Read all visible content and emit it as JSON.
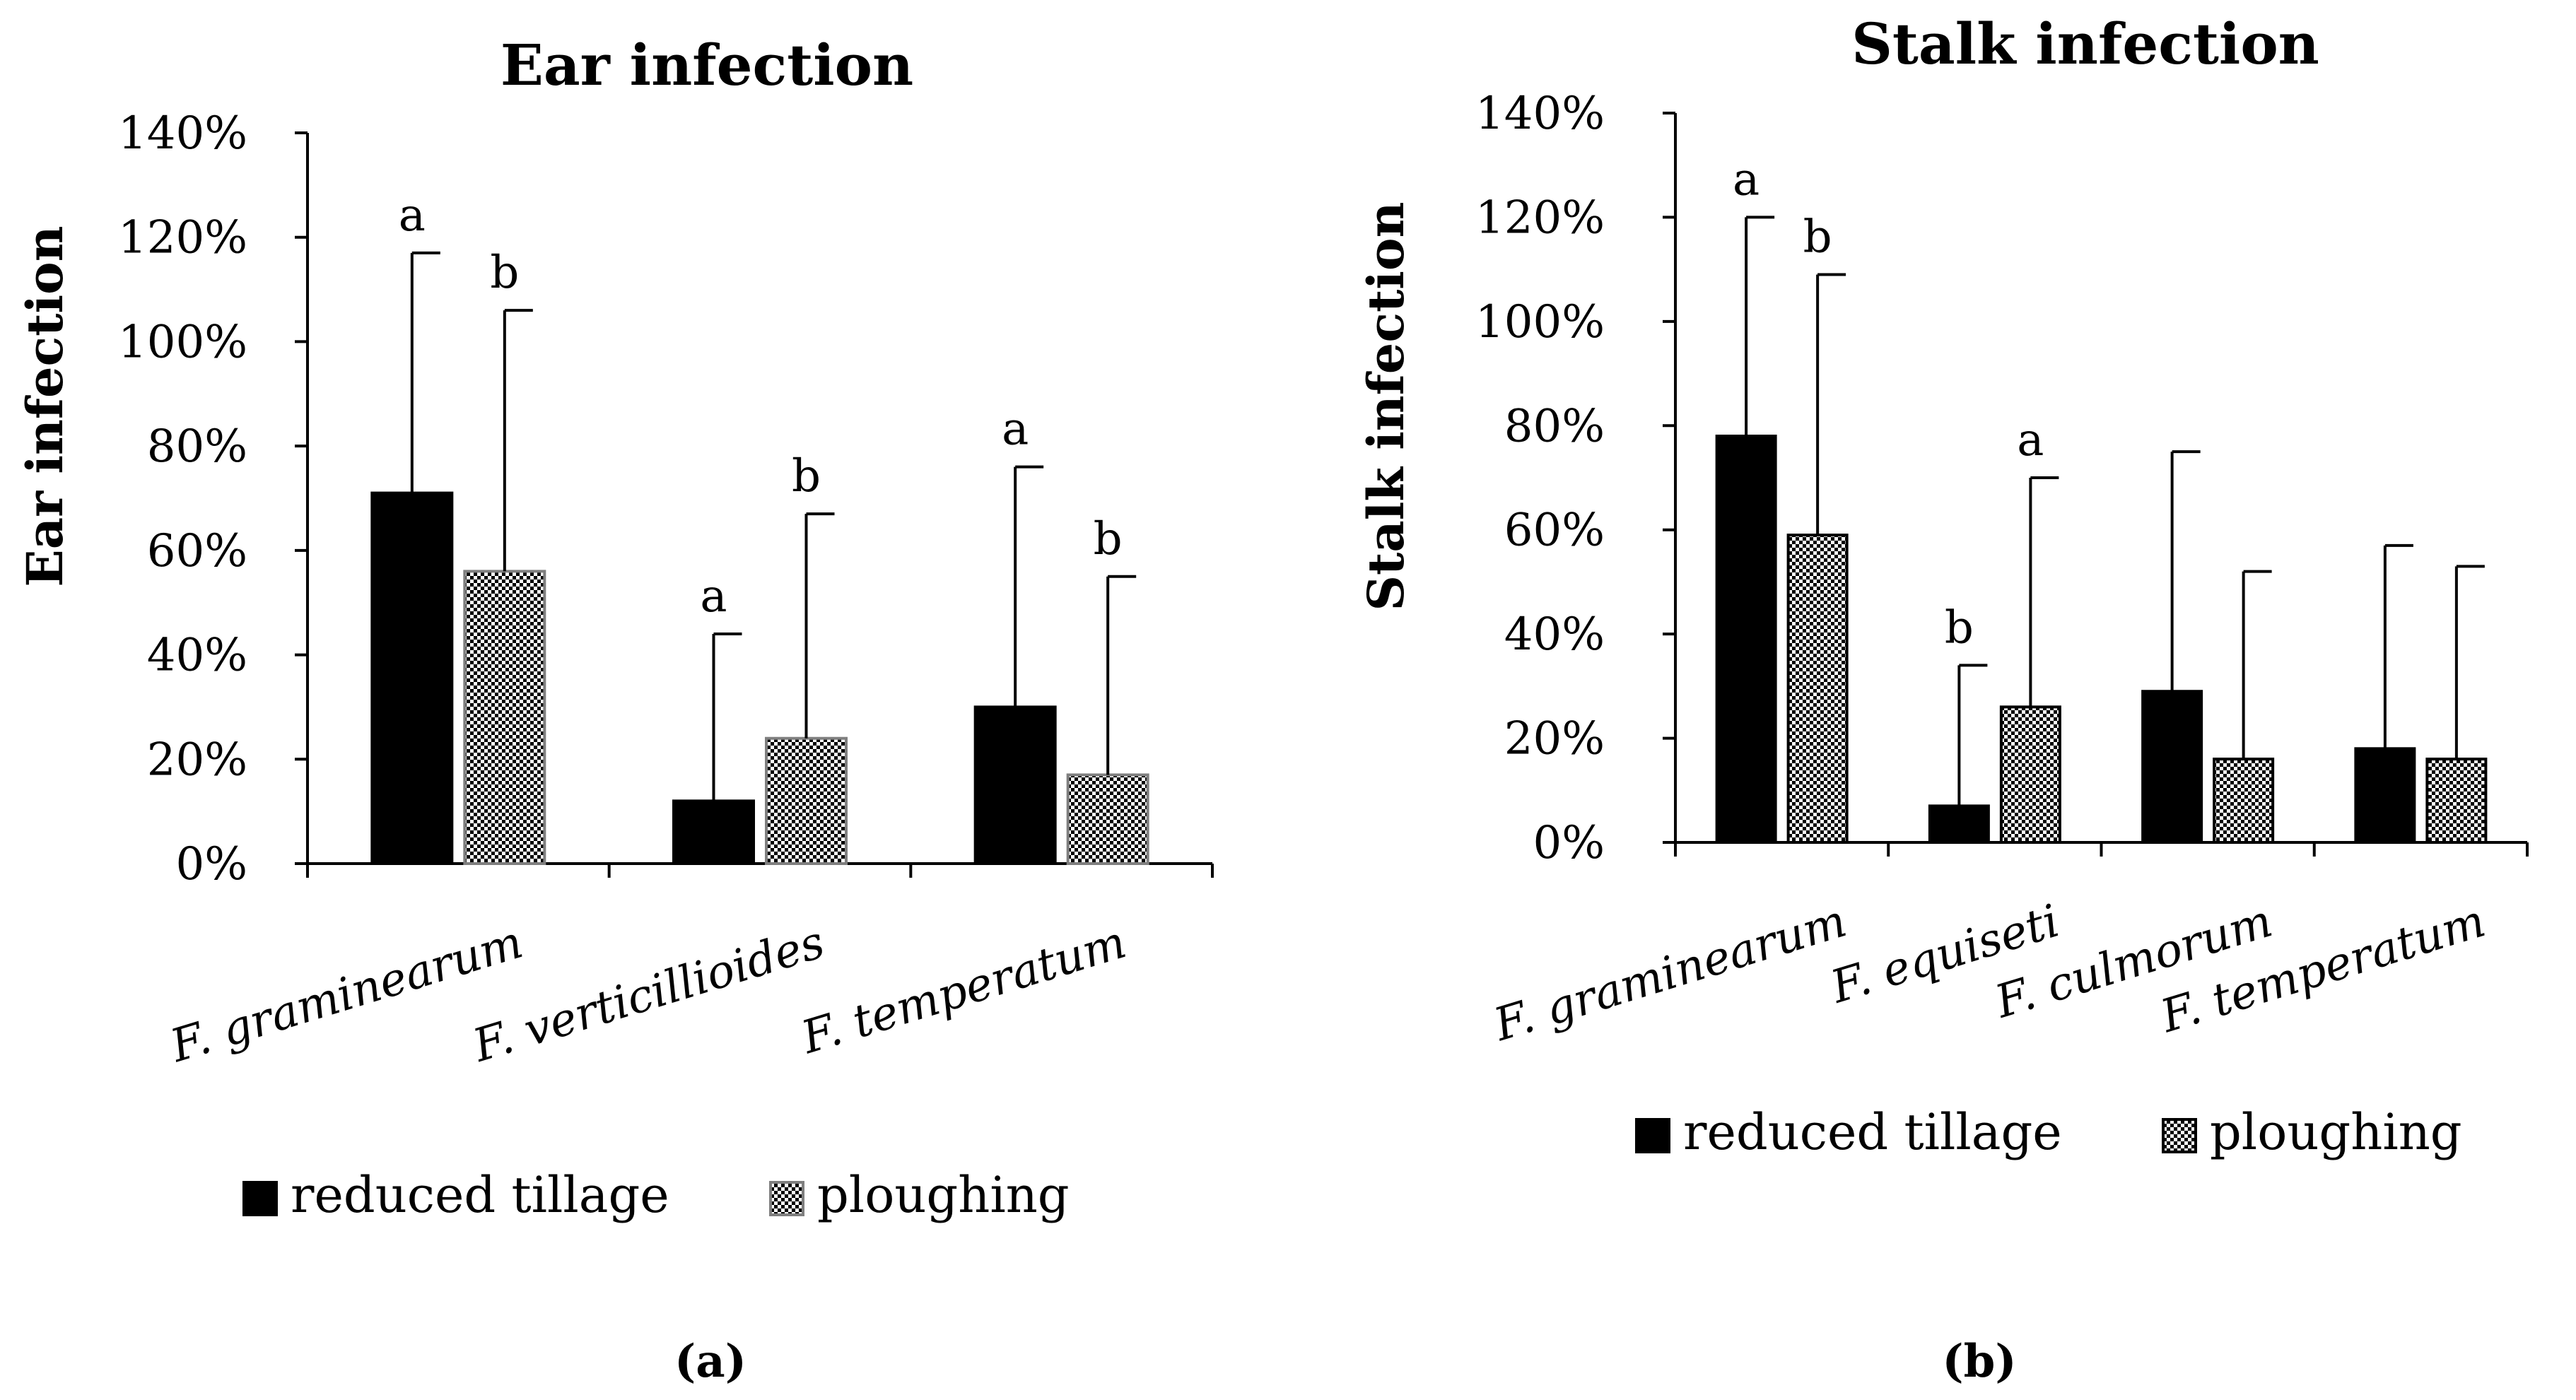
{
  "chart_data": [
    {
      "type": "bar",
      "panel_label": "(a)",
      "title": "Ear infection",
      "ylabel": "Ear infection",
      "xlabel": "",
      "ylim": [
        0,
        140
      ],
      "yticks": [
        "0%",
        "20%",
        "40%",
        "60%",
        "80%",
        "100%",
        "120%",
        "140%"
      ],
      "categories": [
        "F. graminearum",
        "F. verticillioides",
        "F. temperatum"
      ],
      "series": [
        {
          "name": "reduced tillage",
          "color": "#000000",
          "pattern": "solid",
          "values": [
            71,
            12,
            30
          ],
          "error_upper": [
            117,
            44,
            76
          ],
          "significance": [
            "a",
            "a",
            "a"
          ]
        },
        {
          "name": "ploughing",
          "color": "#ffffff",
          "pattern": "checker",
          "values": [
            56,
            24,
            17
          ],
          "error_upper": [
            106,
            67,
            55
          ],
          "significance": [
            "b",
            "b",
            "b"
          ]
        }
      ],
      "legend": [
        "reduced tillage",
        "ploughing"
      ],
      "legend_position": "bottom"
    },
    {
      "type": "bar",
      "panel_label": "(b)",
      "title": "Stalk infection",
      "ylabel": "Stalk infection",
      "xlabel": "",
      "ylim": [
        0,
        140
      ],
      "yticks": [
        "0%",
        "20%",
        "40%",
        "60%",
        "80%",
        "100%",
        "120%",
        "140%"
      ],
      "categories": [
        "F. graminearum",
        "F. equiseti",
        "F. culmorum",
        "F. temperatum"
      ],
      "series": [
        {
          "name": "reduced tillage",
          "color": "#000000",
          "pattern": "solid",
          "values": [
            78,
            7,
            29,
            18
          ],
          "error_upper": [
            120,
            34,
            75,
            57
          ],
          "significance": [
            "a",
            "b",
            "",
            ""
          ]
        },
        {
          "name": "ploughing",
          "color": "#ffffff",
          "pattern": "checker",
          "values": [
            59,
            26,
            16,
            16
          ],
          "error_upper": [
            109,
            70,
            52,
            53
          ],
          "significance": [
            "b",
            "a",
            "",
            ""
          ]
        }
      ],
      "legend": [
        "reduced tillage",
        "ploughing"
      ],
      "legend_position": "bottom"
    }
  ]
}
